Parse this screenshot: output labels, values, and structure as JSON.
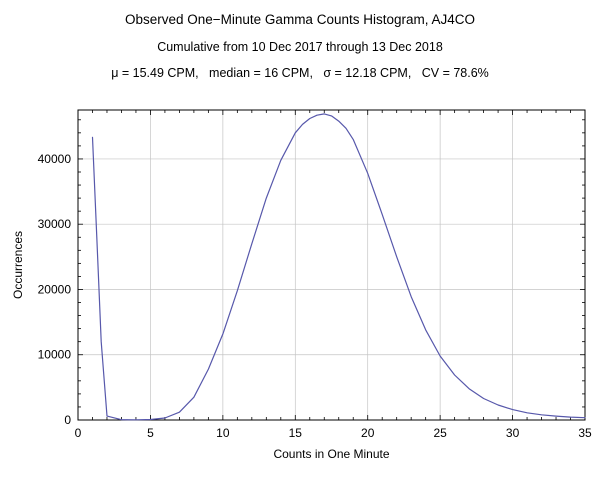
{
  "page": {
    "background": "#ffffff"
  },
  "chart_data": {
    "type": "line",
    "title": "Observed One−Minute Gamma Counts Histogram, AJ4CO",
    "subtitle": "Cumulative from 10 Dec 2017 through 13 Dec 2018",
    "stats": "μ = 15.49 CPM,   median = 16 CPM,   σ = 12.18 CPM,   CV = 78.6%",
    "xlabel": "Counts in One Minute",
    "ylabel": "Occurrences",
    "xlim": [
      0,
      35
    ],
    "ylim": [
      0,
      47500
    ],
    "x_ticks": [
      0,
      5,
      10,
      15,
      20,
      25,
      30,
      35
    ],
    "y_ticks": [
      0,
      10000,
      20000,
      30000,
      40000
    ],
    "x_minor": 1,
    "y_minor": 2000,
    "grid": true,
    "grid_color": "#c4c4c4",
    "line_color": "#5758ab",
    "x": [
      1,
      1.3,
      1.6,
      2,
      3,
      4,
      5,
      6,
      7,
      8,
      9,
      10,
      11,
      12,
      13,
      14,
      15,
      15.5,
      16,
      16.5,
      17,
      17.5,
      18,
      18.5,
      19,
      20,
      21,
      22,
      23,
      24,
      25,
      26,
      27,
      28,
      29,
      30,
      31,
      32,
      33,
      34,
      35
    ],
    "y": [
      43300,
      28000,
      12000,
      600,
      40,
      25,
      70,
      300,
      1200,
      3500,
      7800,
      13200,
      19800,
      27000,
      34000,
      39800,
      44000,
      45300,
      46200,
      46700,
      46900,
      46600,
      45800,
      44700,
      43000,
      37800,
      31500,
      25000,
      18900,
      13800,
      9800,
      6900,
      4800,
      3300,
      2300,
      1600,
      1100,
      800,
      600,
      450,
      350
    ]
  }
}
